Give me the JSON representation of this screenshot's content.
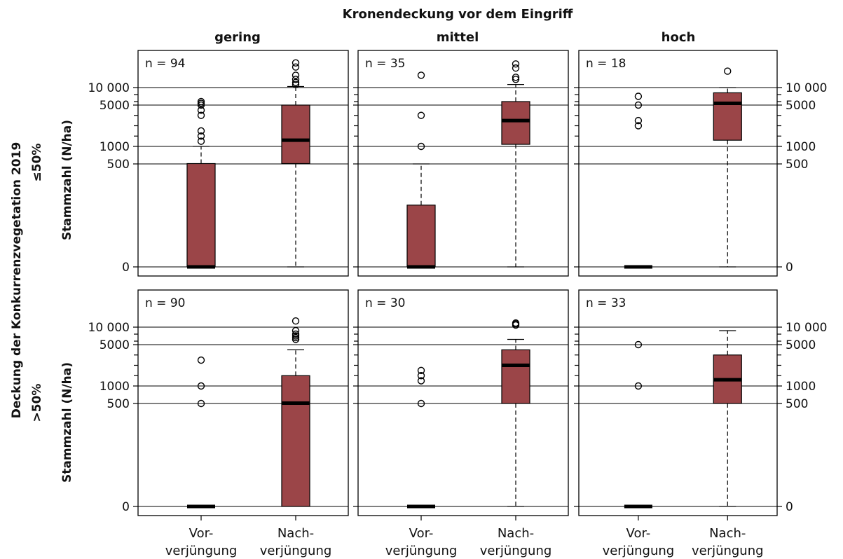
{
  "figure": {
    "supertitle": "Kronendeckung vor dem Eingriff",
    "row_supertitle": "Deckung der Konkurrenzvegetation 2019",
    "ylabel": "Stammzahl (N/ha)",
    "col_titles": [
      "gering",
      "mittel",
      "hoch"
    ],
    "row_titles": [
      "≤50%",
      ">50%"
    ],
    "category_labels": [
      {
        "line1": "Vor-",
        "line2": "verjüngung"
      },
      {
        "line1": "Nach-",
        "line2": "verjüngung"
      }
    ]
  },
  "chart_data": {
    "type": "boxplot",
    "yscale": "square-root-like (irregular tick spacing)",
    "ylim": [
      0,
      25000
    ],
    "yticks": [
      0,
      500,
      1000,
      5000,
      10000
    ],
    "ytick_labels": [
      "0",
      "500",
      "1000",
      "5000",
      "10 000"
    ],
    "grid": "horizontal lines at labeled ticks",
    "categories": [
      "Vorverjüngung",
      "Nachverjüngung"
    ],
    "box_color": "#9b4548",
    "panels": [
      {
        "row": "≤50%",
        "col": "gering",
        "n_label": "n = 94",
        "boxes": [
          {
            "category": "Vorverjüngung",
            "q1": 0,
            "median": 0,
            "q3": 510,
            "whisker_low": 0,
            "whisker_high": 1000,
            "outliers": [
              1500,
              2000,
              2500,
              4000,
              4500,
              5000,
              5500,
              6000
            ]
          },
          {
            "category": "Nachverjüngung",
            "q1": 510,
            "median": 1600,
            "q3": 5000,
            "whisker_low": 0,
            "whisker_high": 10500,
            "outliers": [
              11500,
              12500,
              14000,
              16000,
              20000,
              22000
            ]
          }
        ]
      },
      {
        "row": "≤50%",
        "col": "mittel",
        "n_label": "n = 35",
        "boxes": [
          {
            "category": "Vorverjüngung",
            "q1": 0,
            "median": 0,
            "q3": 300,
            "whisker_low": 0,
            "whisker_high": 500,
            "outliers": [
              1000,
              4000,
              16000
            ]
          },
          {
            "category": "Nachverjüngung",
            "q1": 1200,
            "median": 3500,
            "q3": 6000,
            "whisker_low": 0,
            "whisker_high": 11500,
            "outliers": [
              14000,
              15000,
              19500,
              21500
            ]
          }
        ]
      },
      {
        "row": "≤50%",
        "col": "hoch",
        "n_label": "n = 18",
        "boxes": [
          {
            "category": "Vorverjüngung",
            "q1": 0,
            "median": 0,
            "q3": 0,
            "whisker_low": 0,
            "whisker_high": 0,
            "outliers": [
              3000,
              3500,
              5000,
              7500
            ]
          },
          {
            "category": "Nachverjüngung",
            "q1": 1600,
            "median": 5500,
            "q3": 8500,
            "whisker_low": 0,
            "whisker_high": 10000,
            "outliers": [
              18000
            ]
          }
        ]
      },
      {
        "row": ">50%",
        "col": "gering",
        "n_label": "n = 90",
        "boxes": [
          {
            "category": "Vorverjüngung",
            "q1": 0,
            "median": 0,
            "q3": 0,
            "whisker_low": 0,
            "whisker_high": 0,
            "outliers": [
              500,
              1000,
              3500
            ]
          },
          {
            "category": "Nachverjüngung",
            "q1": 0,
            "median": 510,
            "q3": 2000,
            "whisker_low": 0,
            "whisker_high": 4500,
            "outliers": [
              6500,
              7000,
              7500,
              8000,
              9000,
              13000
            ]
          }
        ]
      },
      {
        "row": ">50%",
        "col": "mittel",
        "n_label": "n = 30",
        "boxes": [
          {
            "category": "Vorverjüngung",
            "q1": 0,
            "median": 0,
            "q3": 0,
            "whisker_low": 0,
            "whisker_high": 0,
            "outliers": [
              500,
              1500,
              2000,
              2500
            ]
          },
          {
            "category": "Nachverjüngung",
            "q1": 500,
            "median": 3000,
            "q3": 4500,
            "whisker_low": 0,
            "whisker_high": 6500,
            "outliers": [
              11000,
              11500,
              12000
            ]
          }
        ]
      },
      {
        "row": ">50%",
        "col": "hoch",
        "n_label": "n = 33",
        "boxes": [
          {
            "category": "Vorverjüngung",
            "q1": 0,
            "median": 0,
            "q3": 0,
            "whisker_low": 0,
            "whisker_high": 0,
            "outliers": [
              1000,
              5000
            ]
          },
          {
            "category": "Nachverjüngung",
            "q1": 500,
            "median": 1600,
            "q3": 4000,
            "whisker_low": 0,
            "whisker_high": 9000,
            "outliers": []
          }
        ]
      }
    ]
  }
}
